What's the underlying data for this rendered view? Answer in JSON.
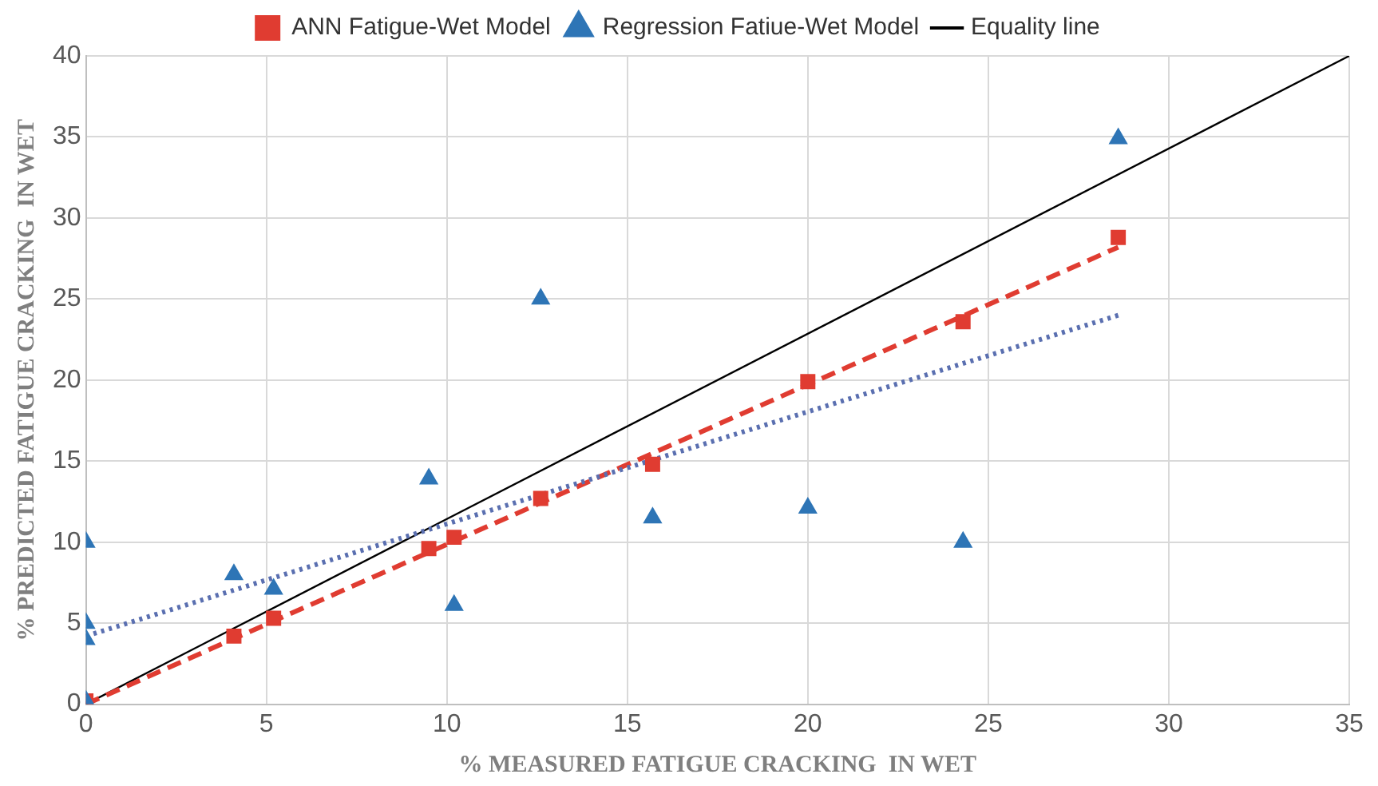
{
  "chart_data": {
    "type": "scatter",
    "xlabel": "% MEASURED FATIGUE CRACKING  IN WET",
    "ylabel": "% PREDICTED FATIGUE CRACKING  IN WET",
    "xlim": [
      0,
      35
    ],
    "xticks": [
      0,
      5,
      10,
      15,
      20,
      25,
      30,
      35
    ],
    "ylim": [
      0,
      40
    ],
    "yticks": [
      0,
      5,
      10,
      15,
      20,
      25,
      30,
      35,
      40
    ],
    "grid": true,
    "legend": "top",
    "series": [
      {
        "name": "ANN Fatigue-Wet Model",
        "marker": "square",
        "color": "#e03c31",
        "x": [
          0,
          4.1,
          5.2,
          9.5,
          10.2,
          12.6,
          15.7,
          20,
          24.3,
          28.6
        ],
        "values": [
          0.2,
          4.2,
          5.3,
          9.6,
          10.3,
          12.7,
          14.8,
          19.9,
          23.6,
          28.8
        ]
      },
      {
        "name": "Regression Fatiue-Wet Model",
        "marker": "triangle",
        "color": "#2e75b6",
        "x": [
          0,
          0,
          0,
          0,
          4.1,
          5.2,
          9.5,
          10.2,
          12.6,
          15.7,
          20,
          24.3,
          28.6
        ],
        "values": [
          10,
          5,
          4,
          0.2,
          8,
          7.1,
          13.9,
          6.1,
          25,
          11.5,
          12.1,
          10,
          34.9
        ]
      },
      {
        "name": "Equality line",
        "type": "line",
        "marker": "none",
        "line_style": "solid",
        "color": "#000000",
        "x": [
          0,
          35
        ],
        "values": [
          0,
          40
        ]
      },
      {
        "type": "line",
        "marker": "none",
        "line_style": "dashed",
        "color": "#e03c31",
        "x": [
          0,
          28.6
        ],
        "values": [
          0,
          28.2
        ]
      },
      {
        "type": "line",
        "marker": "none",
        "line_style": "dotted",
        "color": "#5a6fb0",
        "x": [
          0,
          28.6
        ],
        "values": [
          4.2,
          24
        ]
      }
    ]
  }
}
